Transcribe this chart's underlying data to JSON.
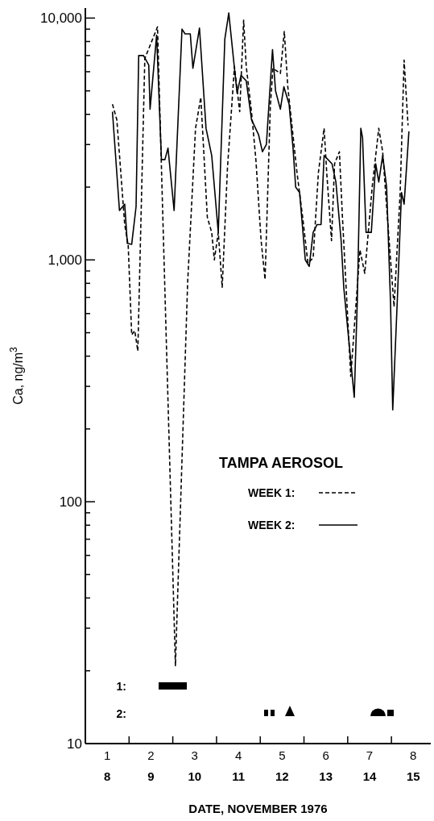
{
  "chart_data": {
    "type": "line",
    "xlabel": "DATE, NOVEMBER 1976",
    "ylabel": "Ca, ng/m$^{3}$",
    "legend_title": "TAMPA AEROSOL",
    "legend": "center right",
    "log": "y",
    "annotations": [
      "1:",
      "2:"
    ],
    "xlim": [
      1,
      8.9
    ],
    "xticks": [
      {
        "value": 1.5,
        "label": "1"
      },
      {
        "value": 2,
        "label": null
      },
      {
        "value": 2.5,
        "label": "2"
      },
      {
        "value": 3,
        "label": null
      },
      {
        "value": 3.5,
        "label": "3"
      },
      {
        "value": 4,
        "label": null
      },
      {
        "value": 4.5,
        "label": "4"
      },
      {
        "value": 5,
        "label": null
      },
      {
        "value": 5.5,
        "label": "5"
      },
      {
        "value": 6,
        "label": null
      },
      {
        "value": 6.5,
        "label": "6"
      },
      {
        "value": 7,
        "label": null
      },
      {
        "value": 7.5,
        "label": "7"
      },
      {
        "value": 8,
        "label": null
      },
      {
        "value": 8.5,
        "label": "8"
      }
    ],
    "x2lim": [
      8,
      15.9
    ],
    "x2ticks": [
      {
        "value": 8.5,
        "label": "8"
      },
      {
        "value": 9.5,
        "label": "9"
      },
      {
        "value": 10.5,
        "label": "10"
      },
      {
        "value": 11.5,
        "label": "11"
      },
      {
        "value": 12.5,
        "label": "12"
      },
      {
        "value": 13.5,
        "label": "13"
      },
      {
        "value": 14.5,
        "label": "14"
      },
      {
        "value": 15.5,
        "label": "15"
      }
    ],
    "ylim": [
      10,
      11000
    ],
    "yticks": [
      10,
      {
        "value": 20,
        "label": null
      },
      {
        "value": 30,
        "label": null
      },
      {
        "value": 40,
        "label": null
      },
      {
        "value": 50,
        "label": null
      },
      {
        "value": 60,
        "label": null
      },
      {
        "value": 70,
        "label": null
      },
      {
        "value": 80,
        "label": null
      },
      {
        "value": 90,
        "label": null
      },
      100,
      {
        "value": 200,
        "label": null
      },
      {
        "value": 300,
        "label": null
      },
      {
        "value": 400,
        "label": null
      },
      {
        "value": 500,
        "label": null
      },
      {
        "value": 600,
        "label": null
      },
      {
        "value": 700,
        "label": null
      },
      {
        "value": 800,
        "label": null
      },
      {
        "value": 900,
        "label": null
      },
      {
        "value": 1000,
        "label": "1,000"
      },
      {
        "value": 2000,
        "label": null
      },
      {
        "value": 3000,
        "label": null
      },
      {
        "value": 4000,
        "label": null
      },
      {
        "value": 5000,
        "label": null
      },
      {
        "value": 6000,
        "label": null
      },
      {
        "value": 7000,
        "label": null
      },
      {
        "value": 8000,
        "label": null
      },
      {
        "value": 9000,
        "label": null
      },
      {
        "value": 10000,
        "label": "10,000"
      }
    ],
    "series": [
      {
        "name": "WEEK 1:",
        "color": "#000000",
        "line_style": "dashed",
        "x": [
          1.62,
          1.72,
          1.9,
          1.98,
          2.06,
          2.13,
          2.2,
          2.36,
          2.54,
          2.65,
          3.06,
          3.34,
          3.52,
          3.64,
          3.79,
          3.89,
          3.95,
          4.04,
          4.13,
          4.25,
          4.41,
          4.53,
          4.62,
          4.68,
          4.8,
          4.9,
          5.02,
          5.11,
          5.23,
          5.29,
          5.46,
          5.55,
          5.63,
          5.78,
          5.84,
          5.97,
          6.09,
          6.21,
          6.33,
          6.46,
          6.52,
          6.63,
          6.7,
          6.81,
          6.88,
          7.07,
          7.28,
          7.39,
          7.56,
          7.71,
          7.8,
          7.92,
          8.06,
          8.2,
          8.29,
          8.38
        ],
        "values": [
          4400,
          3800,
          1400,
          1150,
          490,
          510,
          420,
          6800,
          8200,
          9200,
          21,
          810,
          3500,
          4700,
          1500,
          1300,
          1000,
          1300,
          770,
          2400,
          6300,
          4100,
          9800,
          6300,
          4100,
          2600,
          1200,
          830,
          4300,
          6200,
          5900,
          8800,
          5200,
          2900,
          2300,
          1500,
          970,
          1020,
          2300,
          3500,
          2300,
          1200,
          2500,
          2800,
          1500,
          330,
          1100,
          880,
          2000,
          3500,
          2800,
          1400,
          640,
          1900,
          6700,
          3600
        ]
      },
      {
        "name": "WEEK 2:",
        "color": "#000000",
        "line_style": "solid",
        "x": [
          1.62,
          1.78,
          1.9,
          1.96,
          2.06,
          2.16,
          2.22,
          2.33,
          2.45,
          2.48,
          2.63,
          2.74,
          2.82,
          2.89,
          3.03,
          3.21,
          3.28,
          3.4,
          3.46,
          3.61,
          3.76,
          3.89,
          4.04,
          4.19,
          4.28,
          4.41,
          4.47,
          4.56,
          4.68,
          4.8,
          4.96,
          5.05,
          5.14,
          5.28,
          5.35,
          5.46,
          5.54,
          5.66,
          5.75,
          5.81,
          5.9,
          6.03,
          6.12,
          6.21,
          6.3,
          6.39,
          6.46,
          6.64,
          6.73,
          6.85,
          6.91,
          7.15,
          7.22,
          7.3,
          7.34,
          7.42,
          7.54,
          7.64,
          7.71,
          7.8,
          7.89,
          7.98,
          8.03,
          8.14,
          8.23,
          8.29,
          8.4
        ],
        "values": [
          4100,
          1600,
          1700,
          1170,
          1160,
          1660,
          7000,
          7000,
          6400,
          4200,
          8500,
          2600,
          2600,
          2900,
          1600,
          9000,
          8600,
          8600,
          6200,
          9100,
          3500,
          2700,
          1300,
          8200,
          10500,
          6200,
          4900,
          5800,
          5500,
          3800,
          3300,
          2800,
          3000,
          7400,
          5000,
          4200,
          5200,
          4400,
          2900,
          2000,
          1900,
          1000,
          940,
          1300,
          1400,
          1400,
          2700,
          2500,
          2100,
          1200,
          770,
          270,
          680,
          3500,
          3200,
          1300,
          1300,
          2500,
          2100,
          2700,
          2000,
          660,
          240,
          720,
          1900,
          1700,
          3400
        ]
      }
    ]
  }
}
